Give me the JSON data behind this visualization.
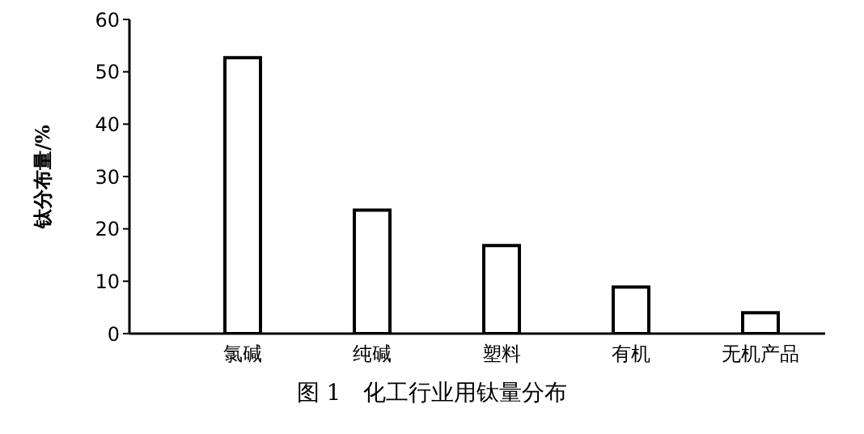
{
  "chart_data": {
    "type": "bar",
    "title": "图 1　化工行业用钛量分布",
    "ylabel": "钛分布量/%",
    "categories": [
      "氯碱",
      "纯碱",
      "塑料",
      "有机",
      "无机产品"
    ],
    "values": [
      52.7,
      23.6,
      16.8,
      8.9,
      4.0
    ],
    "color": "#ffffff",
    "ylim": [
      0,
      60
    ],
    "yticks": [
      0,
      10,
      20,
      30,
      40,
      50,
      60
    ],
    "grid": false,
    "legend": false
  }
}
